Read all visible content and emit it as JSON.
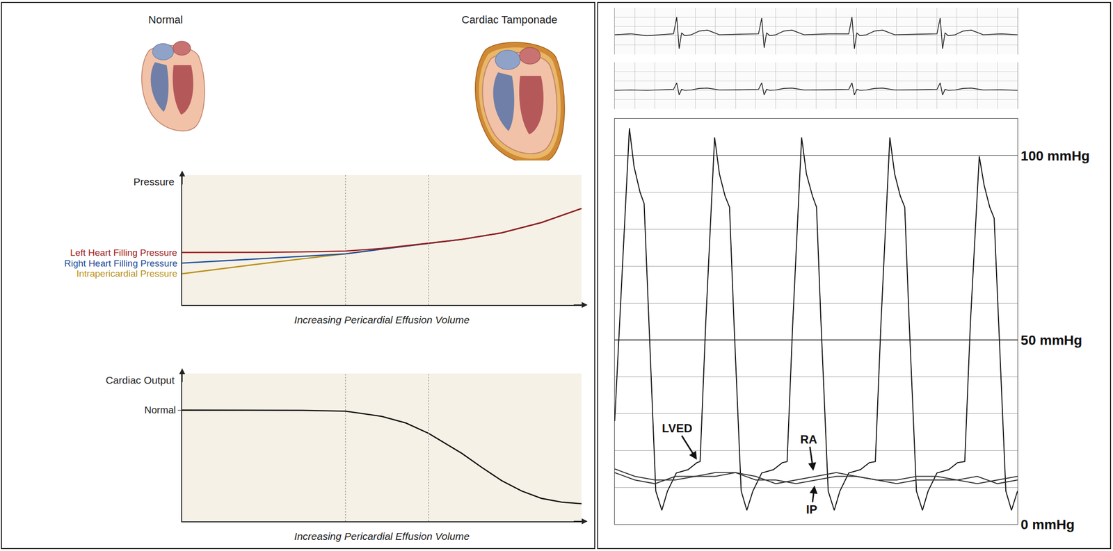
{
  "illustrations": [
    {
      "label": "Normal",
      "pericardial_effusion": false
    },
    {
      "label": "Cardiac Tamponade",
      "pericardial_effusion": true
    }
  ],
  "chart_data": [
    {
      "type": "line",
      "y_label": "Pressure",
      "x_label": "Increasing Pericardial Effusion Volume",
      "xlim": [
        0,
        10
      ],
      "ylim": [
        0,
        10
      ],
      "tick_labels": false,
      "vlines": [
        4.09,
        6.17
      ],
      "x": [
        0,
        1,
        2,
        3,
        4.09,
        5,
        6.17,
        7,
        8,
        9,
        10
      ],
      "series": [
        {
          "name": "Left Heart Filling Pressure",
          "color": "#9b1c1f",
          "values": [
            4.04,
            4.04,
            4.05,
            4.08,
            4.15,
            4.35,
            4.75,
            5.05,
            5.55,
            6.35,
            7.43
          ]
        },
        {
          "name": "Right Heart Filling Pressure",
          "color": "#1f4e9a",
          "values": [
            3.22,
            3.4,
            3.57,
            3.74,
            3.93,
            4.3,
            4.75,
            5.05,
            5.55,
            6.35,
            7.43
          ]
        },
        {
          "name": "Intrapericardial Pressure",
          "color": "#b8901a",
          "values": [
            2.4,
            2.8,
            3.18,
            3.55,
            3.93,
            4.3,
            4.75,
            5.05,
            5.55,
            6.35,
            7.43
          ]
        }
      ]
    },
    {
      "type": "line",
      "y_label": "Cardiac Output",
      "x_label": "Increasing Pericardial Effusion Volume",
      "xlim": [
        0,
        10
      ],
      "ylim": [
        0,
        10
      ],
      "tick_labels": "y",
      "vlines": [
        4.09,
        6.17
      ],
      "yticks": [
        {
          "value": 7.52,
          "label": "Normal"
        }
      ],
      "x": [
        0,
        1,
        2,
        3,
        4.09,
        5,
        5.6,
        6.17,
        7,
        7.5,
        8,
        8.5,
        9,
        9.5,
        10
      ],
      "series": [
        {
          "color": "#111111",
          "values": [
            7.52,
            7.52,
            7.52,
            7.51,
            7.45,
            7.1,
            6.65,
            5.95,
            4.6,
            3.65,
            2.75,
            2.05,
            1.55,
            1.3,
            1.19
          ]
        }
      ]
    },
    {
      "type": "line",
      "xlim": [
        0,
        100
      ],
      "ylim": [
        -1,
        1.5
      ],
      "y2lim": [
        -1,
        1.5
      ],
      "grid": true,
      "tick_labels": false,
      "xticks": [
        0,
        5,
        10,
        15,
        20,
        25,
        30,
        35,
        40,
        45,
        50,
        55,
        60,
        65,
        70,
        75,
        80,
        85,
        90,
        95,
        100
      ],
      "yticks": [
        -1,
        -0.5,
        0,
        0.5,
        1,
        1.5
      ],
      "y2ticks": [
        -1,
        -0.5,
        0,
        0.5,
        1,
        1.5
      ],
      "x": [
        0,
        4,
        8,
        12,
        14.6,
        15.4,
        16.0,
        16.6,
        17.4,
        19,
        21,
        23,
        26,
        31,
        35.7,
        36.5,
        37.1,
        37.7,
        38.5,
        40,
        42,
        44,
        47,
        53,
        58.1,
        58.9,
        59.5,
        60.1,
        60.9,
        62.5,
        64.5,
        66.5,
        69.5,
        75,
        80.0,
        80.8,
        81.4,
        82.0,
        82.8,
        84.5,
        86.5,
        88.5,
        91.5,
        96,
        100
      ],
      "series": [
        {
          "color": "#222222",
          "values": [
            0.05,
            0.1,
            0,
            0.05,
            0.1,
            1.0,
            -0.7,
            0.15,
            0,
            0.05,
            0.25,
            0.3,
            0.05,
            0.08,
            0.1,
            0.95,
            -0.65,
            0.15,
            0,
            0.05,
            0.25,
            0.3,
            0.05,
            0.1,
            0.1,
            1.0,
            -0.7,
            0.15,
            0,
            0.05,
            0.25,
            0.3,
            0.05,
            0.08,
            0.1,
            0.95,
            -0.7,
            0.15,
            0,
            0.05,
            0.25,
            0.3,
            0.05,
            0.1,
            0.05
          ]
        },
        {
          "color": "#222222",
          "axis": "y2",
          "values": [
            0,
            0.02,
            0,
            0.02,
            0.05,
            0.4,
            -0.25,
            0.05,
            0,
            0.02,
            0.1,
            0.12,
            0.02,
            0.03,
            0.05,
            0.4,
            -0.25,
            0.05,
            0,
            0.02,
            0.1,
            0.12,
            0.02,
            0.03,
            0.05,
            0.4,
            -0.25,
            0.05,
            0,
            0.02,
            0.1,
            0.12,
            0.02,
            0.03,
            0.05,
            0.4,
            -0.25,
            0.05,
            0,
            0.02,
            0.1,
            0.12,
            0.02,
            0.03,
            0
          ]
        }
      ]
    },
    {
      "type": "line",
      "xlim": [
        0,
        100
      ],
      "ylim": [
        0,
        110
      ],
      "grid": true,
      "tick_labels": "y",
      "yticks": [
        {
          "value": 0,
          "label": "0 mmHg"
        },
        {
          "value": 50,
          "label": "50 mmHg"
        },
        {
          "value": 100,
          "label": "100 mmHg"
        }
      ],
      "minor_yticks": [
        10,
        20,
        30,
        40,
        60,
        70,
        80,
        90
      ],
      "series": [
        {
          "color": "#111111",
          "x": [
            0,
            3.65,
            4.8,
            6.3,
            7.3,
            8.5,
            10.2,
            11.7,
            13.1,
            15.3,
            18.2,
            20.4,
            21.2,
            22.6,
            24.8,
            26.0,
            27.4,
            28.5,
            29.6,
            31.4,
            32.8,
            34.3,
            36.5,
            39.4,
            41.6,
            42.8,
            44.2,
            46.4,
            47.6,
            49.1,
            50.1,
            51.2,
            53.0,
            54.5,
            55.9,
            58.1,
            61.0,
            63.2,
            64.7,
            66.1,
            68.3,
            69.5,
            70.9,
            72.0,
            73.1,
            74.9,
            76.4,
            77.8,
            80.0,
            82.9,
            85.1,
            86.9,
            88.3,
            90.5,
            91.7,
            93.1,
            94.2,
            95.3,
            97.1,
            98.5,
            100
          ],
          "values": [
            28,
            107.4,
            97,
            90,
            87,
            55,
            9,
            3.8,
            9,
            13.9,
            14.8,
            16.7,
            17,
            54.6,
            104.9,
            95,
            89,
            86,
            55,
            9,
            3.8,
            9,
            13.9,
            14.8,
            16.7,
            17,
            54.6,
            104.9,
            95,
            89,
            86,
            55,
            9,
            3.8,
            9,
            13.9,
            14.8,
            16.7,
            17,
            54.6,
            104.9,
            95,
            89,
            86,
            55,
            9,
            3.8,
            9,
            13.9,
            14.8,
            16.7,
            17,
            54.6,
            99.8,
            92,
            86,
            83,
            55,
            9,
            3.8,
            9
          ]
        },
        {
          "color": "#333333",
          "x": [
            0,
            5,
            10,
            15,
            20,
            25,
            30,
            35,
            40,
            45,
            50,
            55,
            60,
            65,
            70,
            75,
            80,
            85,
            90,
            95,
            100
          ],
          "values": [
            15,
            13,
            12,
            12,
            13,
            14,
            14,
            13,
            11,
            12,
            13,
            14,
            13,
            12,
            12,
            13,
            13,
            12,
            13,
            11,
            12
          ]
        },
        {
          "color": "#333333",
          "x": [
            0,
            5,
            10,
            15,
            20,
            25,
            30,
            35,
            40,
            45,
            50,
            55,
            60,
            65,
            70,
            75,
            80,
            85,
            90,
            95,
            100
          ],
          "values": [
            14,
            12,
            11,
            13,
            13,
            13,
            14,
            12,
            12,
            11,
            12,
            13,
            13,
            12,
            11,
            12,
            12,
            12,
            11,
            12,
            13
          ]
        }
      ],
      "annotations": [
        {
          "text": "LVED",
          "x": 15.5,
          "y": 26,
          "arrow_x": 20.4,
          "arrow_y": 17.5
        },
        {
          "text": "RA",
          "x": 48.2,
          "y": 23,
          "arrow_x": 49.3,
          "arrow_y": 14.5
        },
        {
          "text": "IP",
          "x": 48.9,
          "y": 4,
          "arrow_x": 49.6,
          "arrow_y": 10.5
        }
      ]
    }
  ]
}
